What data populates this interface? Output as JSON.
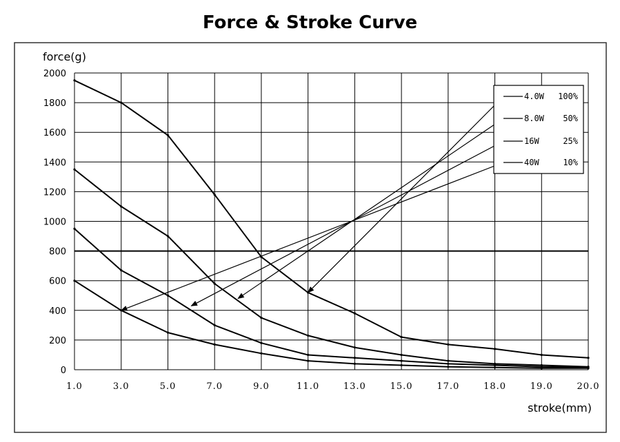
{
  "chart_data": {
    "type": "line",
    "title": "Force & Stroke Curve",
    "xlabel": "stroke(mm)",
    "ylabel": "force(g)",
    "x_ticks": [
      "1.0",
      "3.0",
      "5.0",
      "7.0",
      "9.0",
      "11.0",
      "13.0",
      "15.0",
      "17.0",
      "18.0",
      "19.0",
      "20.0"
    ],
    "y_ticks": [
      "0",
      "200",
      "400",
      "600",
      "800",
      "1000",
      "1200",
      "1400",
      "1600",
      "1800",
      "2000"
    ],
    "ylim": [
      0,
      2000
    ],
    "grid": true,
    "legend_position": "top-right",
    "series": [
      {
        "name": "4.0W 100%",
        "legend_watt": "4.0W",
        "legend_pct": "100%",
        "x": [
          "1.0",
          "3.0",
          "5.0",
          "7.0",
          "9.0",
          "11.0",
          "13.0",
          "15.0",
          "17.0",
          "18.0",
          "19.0",
          "20.0"
        ],
        "values": [
          1950,
          1800,
          1580,
          1180,
          760,
          520,
          380,
          220,
          170,
          140,
          100,
          80
        ]
      },
      {
        "name": "8.0W 50%",
        "legend_watt": "8.0W",
        "legend_pct": "50%",
        "x": [
          "1.0",
          "3.0",
          "5.0",
          "7.0",
          "9.0",
          "11.0",
          "13.0",
          "15.0",
          "17.0",
          "18.0",
          "19.0",
          "20.0"
        ],
        "values": [
          1350,
          1100,
          900,
          580,
          350,
          230,
          150,
          100,
          60,
          40,
          30,
          20
        ]
      },
      {
        "name": "16W 25%",
        "legend_watt": "16W",
        "legend_pct": "25%",
        "x": [
          "1.0",
          "3.0",
          "5.0",
          "7.0",
          "9.0",
          "11.0",
          "13.0",
          "15.0",
          "17.0",
          "18.0",
          "19.0",
          "20.0"
        ],
        "values": [
          950,
          670,
          500,
          300,
          180,
          100,
          80,
          60,
          40,
          30,
          20,
          15
        ]
      },
      {
        "name": "40W 10%",
        "legend_watt": "40W",
        "legend_pct": "10%",
        "x": [
          "1.0",
          "3.0",
          "5.0",
          "7.0",
          "9.0",
          "11.0",
          "13.0",
          "15.0",
          "17.0",
          "18.0",
          "19.0",
          "20.0"
        ],
        "values": [
          600,
          400,
          250,
          170,
          110,
          60,
          40,
          30,
          20,
          15,
          10,
          10
        ]
      }
    ],
    "annotations": [
      {
        "series": "4.0W 100%",
        "x": "11.0",
        "y": 520
      },
      {
        "series": "8.0W 50%",
        "x": "8.0",
        "y": 480
      },
      {
        "series": "16W 25%",
        "x": "6.0",
        "y": 430
      },
      {
        "series": "40W 10%",
        "x": "3.0",
        "y": 400
      }
    ]
  }
}
